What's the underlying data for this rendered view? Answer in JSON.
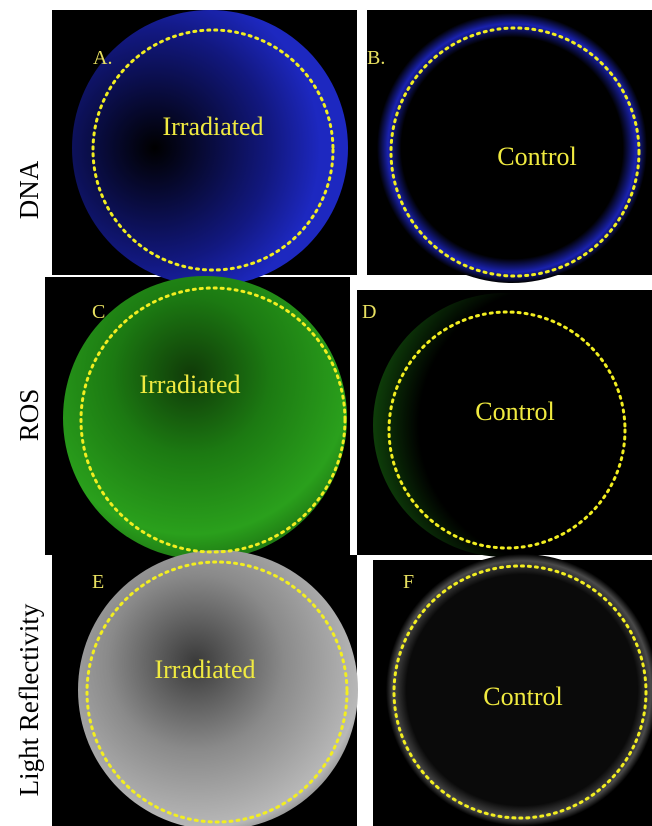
{
  "rows": [
    {
      "label": "DNA",
      "panels": [
        {
          "letter": "A.",
          "text": "Irradiated"
        },
        {
          "letter": "B.",
          "text": "Control"
        }
      ]
    },
    {
      "label": "ROS",
      "panels": [
        {
          "letter": "C",
          "text": "Irradiated"
        },
        {
          "letter": "D",
          "text": "Control"
        }
      ]
    },
    {
      "label": "Light Reflectivity",
      "panels": [
        {
          "letter": "E",
          "text": "Irradiated"
        },
        {
          "letter": "F",
          "text": "Control"
        }
      ]
    }
  ]
}
